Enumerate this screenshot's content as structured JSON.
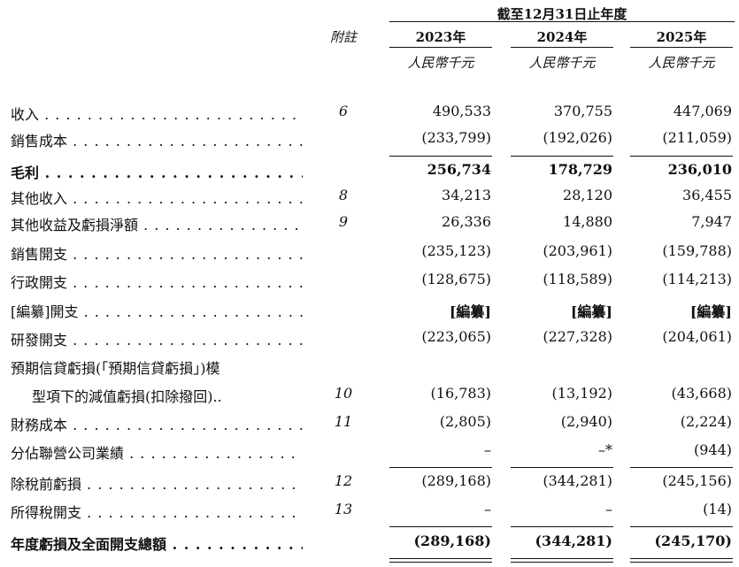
{
  "header": {
    "period_title": "截至12月31日止年度",
    "note_label": "附註",
    "years": [
      "2023年",
      "2024年",
      "2025年"
    ],
    "currency": [
      "人民幣千元",
      "人民幣千元",
      "人民幣千元"
    ]
  },
  "rows": [
    {
      "label": "收入",
      "note": "6",
      "values": [
        "490,533",
        "370,755",
        "447,069"
      ],
      "dots": true
    },
    {
      "label": "銷售成本",
      "note": "",
      "values": [
        "(233,799)",
        "(192,026)",
        "(211,059)"
      ],
      "dots": true
    },
    {
      "label": "毛利",
      "note": "",
      "values": [
        "256,734",
        "178,729",
        "236,010"
      ],
      "dots": true,
      "bold": true
    },
    {
      "label": "其他收入",
      "note": "8",
      "values": [
        "34,213",
        "28,120",
        "36,455"
      ],
      "dots": true
    },
    {
      "label": "其他收益及虧損淨額",
      "note": "9",
      "values": [
        "26,336",
        "14,880",
        "7,947"
      ],
      "dots": true
    },
    {
      "label": "銷售開支",
      "note": "",
      "values": [
        "(235,123)",
        "(203,961)",
        "(159,788)"
      ],
      "dots": true
    },
    {
      "label": "行政開支",
      "note": "",
      "values": [
        "(128,675)",
        "(118,589)",
        "(114,213)"
      ],
      "dots": true
    },
    {
      "label": "[編纂]開支",
      "note": "",
      "values": [
        "[編纂]",
        "[編纂]",
        "[編纂]"
      ],
      "dots": true,
      "boldvals": true
    },
    {
      "label": "研發開支",
      "note": "",
      "values": [
        "(223,065)",
        "(227,328)",
        "(204,061)"
      ],
      "dots": true
    },
    {
      "label": "預期信貸虧損(「預期信貸虧損」)模",
      "note": "",
      "values": [
        "",
        "",
        ""
      ],
      "dots": false
    },
    {
      "label": "型項下的減值虧損(扣除撥回)..",
      "note": "10",
      "values": [
        "(16,783)",
        "(13,192)",
        "(43,668)"
      ],
      "dots": false,
      "indent": true
    },
    {
      "label": "財務成本",
      "note": "11",
      "values": [
        "(2,805)",
        "(2,940)",
        "(2,224)"
      ],
      "dots": true
    },
    {
      "label": "分佔聯營公司業績",
      "note": "",
      "values": [
        "–",
        "–*",
        "(944)"
      ],
      "dots": true
    },
    {
      "label": "除稅前虧損",
      "note": "12",
      "values": [
        "(289,168)",
        "(344,281)",
        "(245,156)"
      ],
      "dots": true
    },
    {
      "label": "所得稅開支",
      "note": "13",
      "values": [
        "–",
        "–",
        "(14)"
      ],
      "dots": true
    },
    {
      "label": "年度虧損及全面開支總額",
      "note": "",
      "values": [
        "(289,168)",
        "(344,281)",
        "(245,170)"
      ],
      "dots": true,
      "bold": true
    }
  ]
}
